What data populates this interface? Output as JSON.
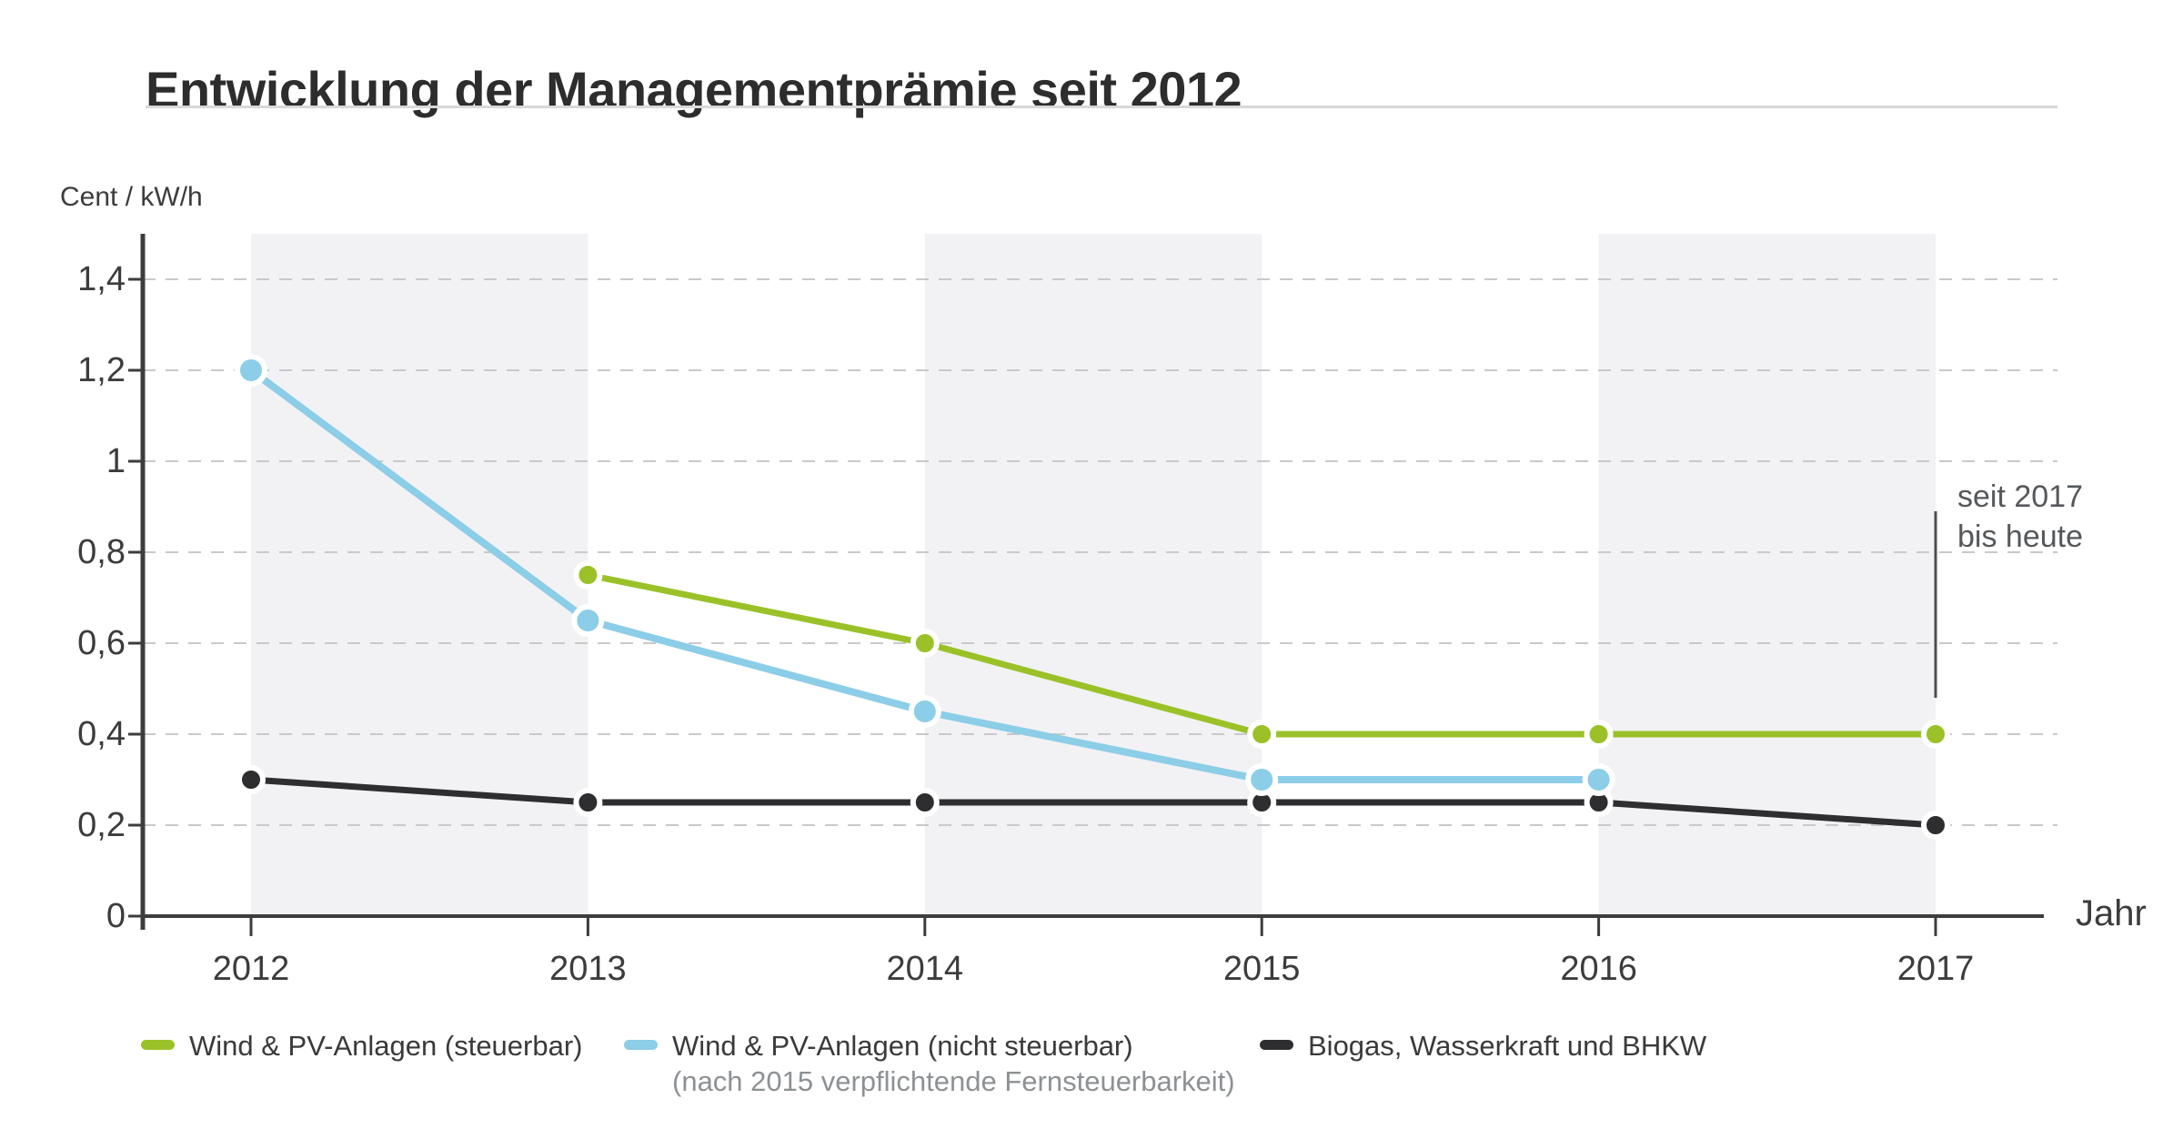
{
  "page": {
    "title": "Entwicklung der Managementprämie seit 2012"
  },
  "chart_data": {
    "type": "line",
    "title": "Entwicklung der Managementprämie seit 2012",
    "y_axis_unit": "Cent / kW/h",
    "x_axis_label": "Jahr",
    "ylim": [
      0,
      1.5
    ],
    "y_ticks": [
      0,
      0.2,
      0.4,
      0.6,
      0.8,
      1.0,
      1.2,
      1.4
    ],
    "y_tick_labels": [
      "0",
      "0,2",
      "0,4",
      "0,6",
      "0,8",
      "1",
      "1,2",
      "1,4"
    ],
    "years": [
      2012,
      2013,
      2014,
      2015,
      2016,
      2017
    ],
    "x_tick_labels": [
      "2012",
      "2013",
      "2014",
      "2015",
      "2016",
      "2017"
    ],
    "grid": "horizontal-dashed",
    "legend_position": "bottom",
    "shaded_year_spans": [
      [
        2012,
        2013
      ],
      [
        2014,
        2015
      ],
      [
        2016,
        2017
      ]
    ],
    "series": [
      {
        "name": "Biogas, Wasserkraft und BHKW",
        "color": "#2e2e30",
        "dot_radius": 13,
        "line_width": 7,
        "points": [
          [
            2012,
            0.3
          ],
          [
            2013,
            0.25
          ],
          [
            2014,
            0.25
          ],
          [
            2015,
            0.25
          ],
          [
            2016,
            0.25
          ],
          [
            2017,
            0.2
          ]
        ]
      },
      {
        "name": "Wind & PV-Anlagen (nicht steuerbar)",
        "note": "(nach 2015 verpflichtende Fernsteuerbarkeit)",
        "color": "#8ccde8",
        "dot_radius": 15,
        "line_width": 8,
        "points": [
          [
            2012,
            1.2
          ],
          [
            2013,
            0.65
          ],
          [
            2014,
            0.45
          ],
          [
            2015,
            0.3
          ],
          [
            2016,
            0.3
          ]
        ]
      },
      {
        "name": "Wind & PV-Anlagen (steuerbar)",
        "color": "#9ac228",
        "dot_radius": 13,
        "line_width": 7,
        "points": [
          [
            2013,
            0.75
          ],
          [
            2014,
            0.6
          ],
          [
            2015,
            0.4
          ],
          [
            2016,
            0.4
          ],
          [
            2017,
            0.4
          ]
        ]
      }
    ],
    "annotation": {
      "line1": "seit 2017",
      "line2": "bis heute",
      "year": 2017,
      "value_from": 0.48,
      "value_to": 0.89
    },
    "colors": {
      "band": "#f2f2f4",
      "gridline": "#c9c9c9",
      "axis": "#3d3d3d",
      "annotation_line": "#4d4d4d"
    }
  },
  "legend": {
    "items": [
      {
        "label": "Wind & PV-Anlagen (steuerbar)",
        "sublabel": "",
        "color": "#9ac228"
      },
      {
        "label": "Wind & PV-Anlagen (nicht steuerbar)",
        "sublabel": "(nach 2015 verpflichtende Fernsteuerbarkeit)",
        "color": "#8ccde8"
      },
      {
        "label": "Biogas, Wasserkraft und BHKW",
        "sublabel": "",
        "color": "#2e2e30"
      }
    ]
  }
}
